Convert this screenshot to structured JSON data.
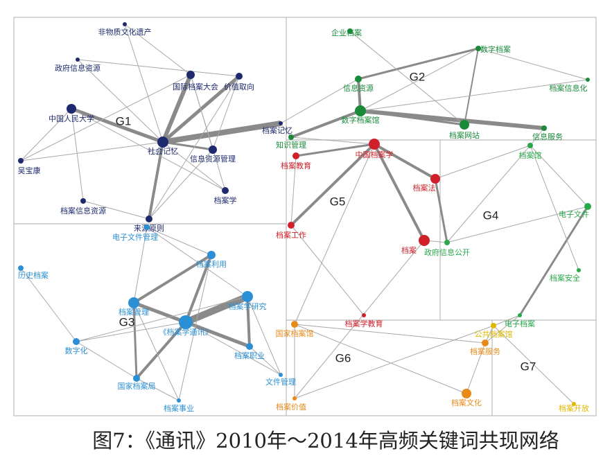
{
  "groups": [
    {
      "label": "G1"
    },
    {
      "label": "G2"
    },
    {
      "label": "G3"
    },
    {
      "label": "G4"
    },
    {
      "label": "G5"
    },
    {
      "label": "G6"
    },
    {
      "label": "G7"
    }
  ],
  "nodes": [
    {
      "label": "非物质文化遗产"
    },
    {
      "label": "政府信息资源"
    },
    {
      "label": "国际档案大会"
    },
    {
      "label": "价值取向"
    },
    {
      "label": "中国人民大学"
    },
    {
      "label": "社会记忆"
    },
    {
      "label": "信息资源管理"
    },
    {
      "label": "吴宝康"
    },
    {
      "label": "档案信息资源"
    },
    {
      "label": "档案学"
    },
    {
      "label": "来源原则"
    },
    {
      "label": "档案记忆"
    },
    {
      "label": "企业档案"
    },
    {
      "label": "数字档案"
    },
    {
      "label": "档案信息化"
    },
    {
      "label": "信息资源"
    },
    {
      "label": "数字档案馆"
    },
    {
      "label": "档案网站"
    },
    {
      "label": "信息服务"
    },
    {
      "label": "知识管理"
    },
    {
      "label": "中国档案学"
    },
    {
      "label": "档案教育"
    },
    {
      "label": "档案法"
    },
    {
      "label": "档案工作"
    },
    {
      "label": "档案"
    },
    {
      "label": "档案学教育"
    },
    {
      "label": "档案馆"
    },
    {
      "label": "电子文件"
    },
    {
      "label": "政府信息公开"
    },
    {
      "label": "档案安全"
    },
    {
      "label": "电子档案"
    },
    {
      "label": "电子文件管理"
    },
    {
      "label": "历史档案"
    },
    {
      "label": "档案利用"
    },
    {
      "label": "档案学研究"
    },
    {
      "label": "档案管理"
    },
    {
      "label": "《档案学通讯》"
    },
    {
      "label": "数字化"
    },
    {
      "label": "档案职业"
    },
    {
      "label": "国家档案局"
    },
    {
      "label": "文件管理"
    },
    {
      "label": "档案事业"
    },
    {
      "label": "国家档案馆"
    },
    {
      "label": "档案服务"
    },
    {
      "label": "档案文化"
    },
    {
      "label": "档案价值"
    },
    {
      "label": "公共档案馆"
    },
    {
      "label": "档案开放"
    }
  ],
  "caption": "图7：《通讯》2010年～2014年高频关键词共现网络"
}
